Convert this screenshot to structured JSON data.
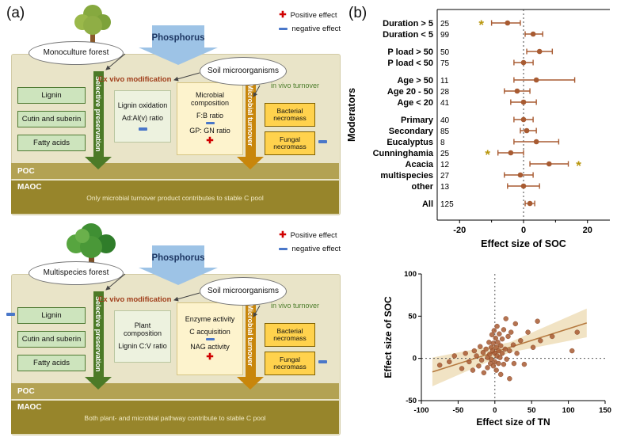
{
  "panel_a": {
    "label": "(a)",
    "legend": {
      "positive": "Positive effect",
      "negative": "negative effect"
    },
    "shared": {
      "phosphorus": "Phosphorus",
      "soil": "Soil microorganisms",
      "ex_vivo": "Ex vivo modification",
      "in_vivo": "in vivo turnover",
      "selective_arrow": "Selective preservation",
      "microbial_arrow": "Microbial turnover",
      "plant_boxes": [
        "Lignin",
        "Cutin and suberin",
        "Fatty acids"
      ],
      "necromass_boxes": [
        "Bacterial necromass",
        "Fungal necromass"
      ],
      "poc": "POC",
      "maoc": "MAOC"
    },
    "top": {
      "forest": "Monoculture forest",
      "box1": [
        "Lignin oxidation",
        "Ad:Al(v) ratio"
      ],
      "box2_title": "Microbial composition",
      "box2_items": [
        "F:B ratio",
        "GP: GN ratio"
      ],
      "maoc_text": "Only microbial turnover product contributes to stable C pool"
    },
    "bottom": {
      "forest": "Multispecies forest",
      "box1": [
        "Plant composition",
        "Lignin C:V ratio"
      ],
      "box2_title": "Enzyme activity",
      "box2_items": [
        "C acquisition",
        "NAG activity"
      ],
      "maoc_text": "Both plant- and microbial pathway contribute to stable C pool"
    }
  },
  "panel_b": {
    "label": "(b)"
  },
  "chart_data": [
    {
      "type": "forest",
      "xlabel": "Effect size of SOC",
      "ylabel": "Moderators",
      "xlim": [
        -27,
        27
      ],
      "xticks": [
        -20,
        0,
        20
      ],
      "xticks_minor": [
        -10,
        10
      ],
      "point_color": "#a85b32",
      "sig_color": "#b8960c",
      "groups": [
        {
          "rows": [
            {
              "label": "Duration > 5",
              "n": 25,
              "est": -5,
              "lo": -10,
              "hi": -1,
              "sig": "left"
            },
            {
              "label": "Duration < 5",
              "n": 99,
              "est": 3,
              "lo": 0.5,
              "hi": 6,
              "sig": null
            }
          ]
        },
        {
          "rows": [
            {
              "label": "P load > 50",
              "n": 50,
              "est": 5,
              "lo": 1,
              "hi": 9,
              "sig": null
            },
            {
              "label": "P load < 50",
              "n": 75,
              "est": 0,
              "lo": -3,
              "hi": 3,
              "sig": null
            }
          ]
        },
        {
          "rows": [
            {
              "label": "Age > 50",
              "n": 11,
              "est": 4,
              "lo": -3,
              "hi": 16,
              "sig": null
            },
            {
              "label": "Age 20 - 50",
              "n": 28,
              "est": -2,
              "lo": -6,
              "hi": 2,
              "sig": null
            },
            {
              "label": "Age < 20",
              "n": 41,
              "est": 0,
              "lo": -4,
              "hi": 4,
              "sig": null
            }
          ]
        },
        {
          "rows": [
            {
              "label": "Primary",
              "n": 40,
              "est": 0,
              "lo": -3,
              "hi": 3,
              "sig": null
            },
            {
              "label": "Secondary",
              "n": 85,
              "est": 1,
              "lo": -1,
              "hi": 4,
              "sig": null
            },
            {
              "label": "Eucalyptus",
              "n": 8,
              "est": 4,
              "lo": -3,
              "hi": 11,
              "sig": null
            },
            {
              "label": "Cunninghamia",
              "n": 25,
              "est": -4,
              "lo": -8,
              "hi": 0,
              "sig": "left"
            },
            {
              "label": "Acacia",
              "n": 12,
              "est": 8,
              "lo": 2,
              "hi": 14,
              "sig": "right"
            },
            {
              "label": "multispecies",
              "n": 27,
              "est": -1,
              "lo": -6,
              "hi": 3,
              "sig": null
            },
            {
              "label": "other",
              "n": 13,
              "est": 0,
              "lo": -5,
              "hi": 5,
              "sig": null
            }
          ]
        },
        {
          "rows": [
            {
              "label": "All",
              "n": 125,
              "est": 2,
              "lo": 0.5,
              "hi": 3.5,
              "sig": null
            }
          ]
        }
      ]
    },
    {
      "type": "scatter",
      "xlabel": "Effect size of TN",
      "ylabel": "Effect size of SOC",
      "xlim": [
        -100,
        150
      ],
      "ylim": [
        -50,
        100
      ],
      "xticks": [
        -100,
        -50,
        0,
        50,
        100,
        150
      ],
      "yticks": [
        -50,
        0,
        50,
        100
      ],
      "point_color": "#a85b32",
      "fit": {
        "x0": -85,
        "y0": -16,
        "x1": 125,
        "y1": 42,
        "band_end": 17,
        "band_mid": 6
      },
      "points": [
        [
          -75,
          -8
        ],
        [
          -62,
          -4
        ],
        [
          -55,
          3
        ],
        [
          -45,
          -12
        ],
        [
          -40,
          6
        ],
        [
          -35,
          -4
        ],
        [
          -30,
          -14
        ],
        [
          -28,
          9
        ],
        [
          -25,
          3
        ],
        [
          -22,
          -9
        ],
        [
          -20,
          14
        ],
        [
          -18,
          -2
        ],
        [
          -16,
          7
        ],
        [
          -15,
          -17
        ],
        [
          -12,
          11
        ],
        [
          -10,
          1
        ],
        [
          -10,
          -11
        ],
        [
          -8,
          19
        ],
        [
          -7,
          5
        ],
        [
          -6,
          -6
        ],
        [
          -5,
          13
        ],
        [
          -5,
          -1
        ],
        [
          -4,
          28
        ],
        [
          -3,
          9
        ],
        [
          -2,
          -9
        ],
        [
          -2,
          18
        ],
        [
          -1,
          33
        ],
        [
          0,
          6
        ],
        [
          0,
          -4
        ],
        [
          1,
          24
        ],
        [
          2,
          13
        ],
        [
          2,
          -14
        ],
        [
          3,
          38
        ],
        [
          3,
          3
        ],
        [
          4,
          19
        ],
        [
          5,
          -6
        ],
        [
          5,
          9
        ],
        [
          6,
          29
        ],
        [
          7,
          1
        ],
        [
          8,
          15
        ],
        [
          8,
          -19
        ],
        [
          10,
          23
        ],
        [
          10,
          6
        ],
        [
          12,
          -7
        ],
        [
          12,
          34
        ],
        [
          14,
          11
        ],
        [
          15,
          47
        ],
        [
          16,
          -1
        ],
        [
          18,
          26
        ],
        [
          20,
          9
        ],
        [
          20,
          -24
        ],
        [
          22,
          31
        ],
        [
          25,
          16
        ],
        [
          26,
          -6
        ],
        [
          28,
          41
        ],
        [
          30,
          6
        ],
        [
          35,
          21
        ],
        [
          40,
          -7
        ],
        [
          45,
          31
        ],
        [
          52,
          13
        ],
        [
          58,
          44
        ],
        [
          62,
          21
        ],
        [
          78,
          26
        ],
        [
          105,
          9
        ],
        [
          112,
          31
        ]
      ]
    }
  ]
}
